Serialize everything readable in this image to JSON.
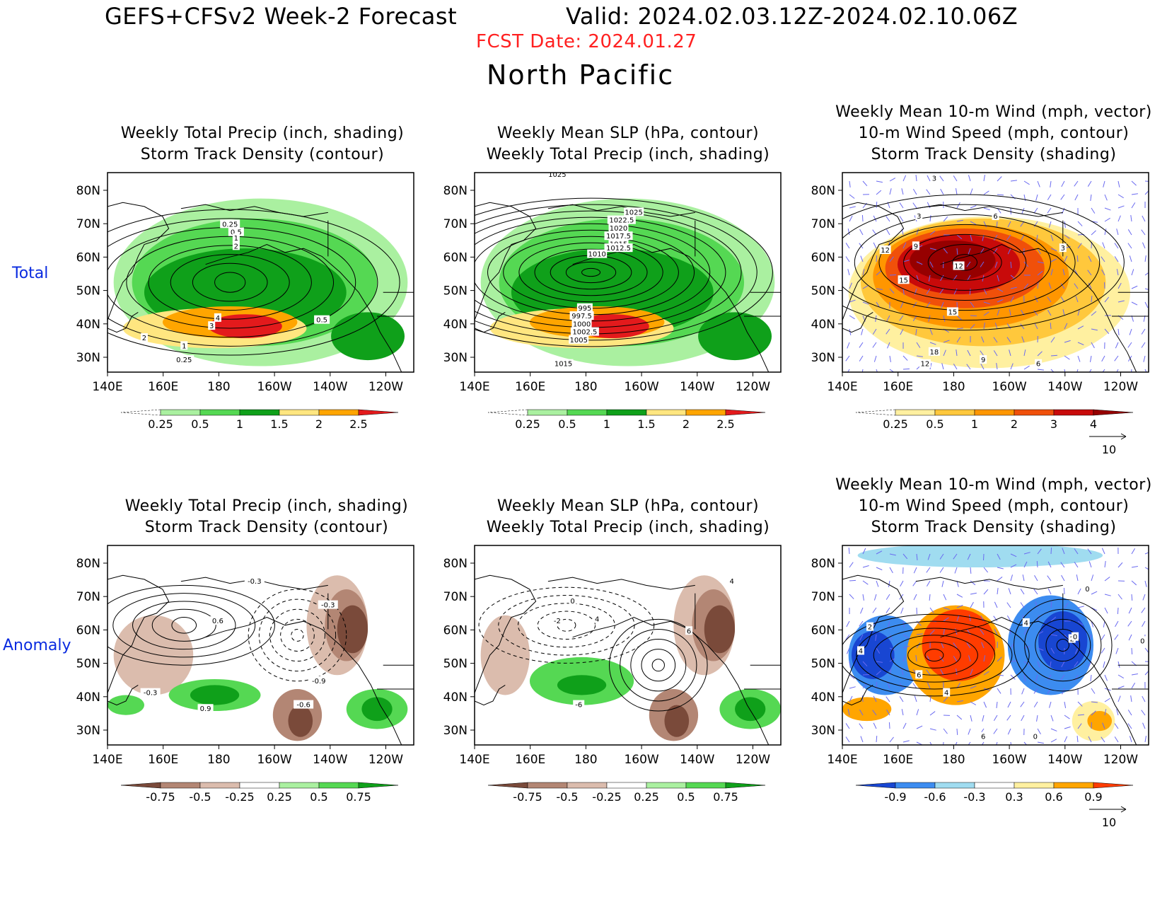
{
  "header": {
    "title": "GEFS+CFSv2 Week-2 Forecast",
    "valid": "Valid: 2024.02.03.12Z-2024.02.10.06Z",
    "fcst_date": "FCST Date: 2024.01.27",
    "region": "North Pacific"
  },
  "rows": {
    "total": "Total",
    "anomaly": "Anomaly"
  },
  "axes": {
    "lat_labels": [
      "80N",
      "70N",
      "60N",
      "50N",
      "40N",
      "30N"
    ],
    "lon_labels": [
      "140E",
      "160E",
      "180",
      "160W",
      "140W",
      "120W"
    ]
  },
  "panels": [
    {
      "id": "total-precip",
      "title_lines": [
        "Weekly Total Precip (inch, shading)",
        "Storm Track Density (contour)"
      ],
      "colorbar": [
        "0.25",
        "0.5",
        "1",
        "1.5",
        "2",
        "2.5"
      ],
      "contour_labels": [
        "0.25",
        "0.5",
        "1",
        "2",
        "4",
        "3",
        "2",
        "1",
        "0.5",
        "0.25"
      ]
    },
    {
      "id": "total-slp",
      "title_lines": [
        "Weekly Mean SLP (hPa, contour)",
        "Weekly Total Precip (inch, shading)"
      ],
      "colorbar": [
        "0.25",
        "0.5",
        "1",
        "1.5",
        "2",
        "2.5"
      ],
      "contour_labels": [
        "1025",
        "1025",
        "1022.5",
        "1020",
        "1017.5",
        "1015",
        "1012.5",
        "1010",
        "995",
        "997.5",
        "1000",
        "1002.5",
        "1005",
        "1015"
      ]
    },
    {
      "id": "total-wind",
      "title_lines": [
        "Weekly Mean 10-m Wind (mph, vector)",
        "10-m Wind Speed (mph, contour)",
        "Storm Track Density (shading)"
      ],
      "colorbar": [
        "0.25",
        "0.5",
        "1",
        "2",
        "3",
        "4"
      ],
      "vector_ref": "10",
      "contour_labels": [
        "3",
        "3",
        "6",
        "3",
        "12",
        "9",
        "15",
        "12",
        "15",
        "18",
        "12",
        "9",
        "6"
      ]
    },
    {
      "id": "anom-precip",
      "title_lines": [
        "Weekly Total Precip (inch, shading)",
        "Storm Track Density (contour)"
      ],
      "colorbar": [
        "-0.75",
        "-0.5",
        "-0.25",
        "0.25",
        "0.5",
        "0.75"
      ],
      "contour_labels": [
        "-0.3",
        "0.6",
        "-0.3",
        "-0.3",
        "0.9",
        "-0.9",
        "-0.6"
      ]
    },
    {
      "id": "anom-slp",
      "title_lines": [
        "Weekly Mean SLP (hPa, contour)",
        "Weekly Total Precip (inch, shading)"
      ],
      "colorbar": [
        "-0.75",
        "-0.5",
        "-0.25",
        "0.25",
        "0.5",
        "0.75"
      ],
      "contour_labels": [
        "4",
        "0",
        "-2",
        "4",
        "6",
        "-6"
      ]
    },
    {
      "id": "anom-wind",
      "title_lines": [
        "Weekly Mean 10-m Wind (mph, vector)",
        "10-m Wind Speed (mph, contour)",
        "Storm Track Density (shading)"
      ],
      "colorbar": [
        "-0.9",
        "-0.6",
        "-0.3",
        "0.3",
        "0.6",
        "0.9"
      ],
      "vector_ref": "10",
      "contour_labels": [
        "0",
        "2",
        "4",
        "6",
        "4",
        "4",
        "2",
        "0",
        "0",
        "6",
        "0"
      ]
    }
  ],
  "colors": {
    "precip_total": [
      "#ffffff",
      "#aaf0a0",
      "#55d853",
      "#0fa01a",
      "#ffe680",
      "#ffa500",
      "#e31a1c"
    ],
    "track_total": [
      "#ffffff",
      "#fff0a0",
      "#ffc83c",
      "#ff9600",
      "#f0500a",
      "#c80a0a",
      "#960000"
    ],
    "precip_anom": [
      "#7a4a3a",
      "#b38674",
      "#dbbcad",
      "#ffffff",
      "#aaf0a0",
      "#55d853",
      "#0fa01a"
    ],
    "track_anom": [
      "#1846d2",
      "#3c8cf0",
      "#a0dcf0",
      "#ffffff",
      "#fff0a0",
      "#ffa500",
      "#ff3c00"
    ]
  }
}
